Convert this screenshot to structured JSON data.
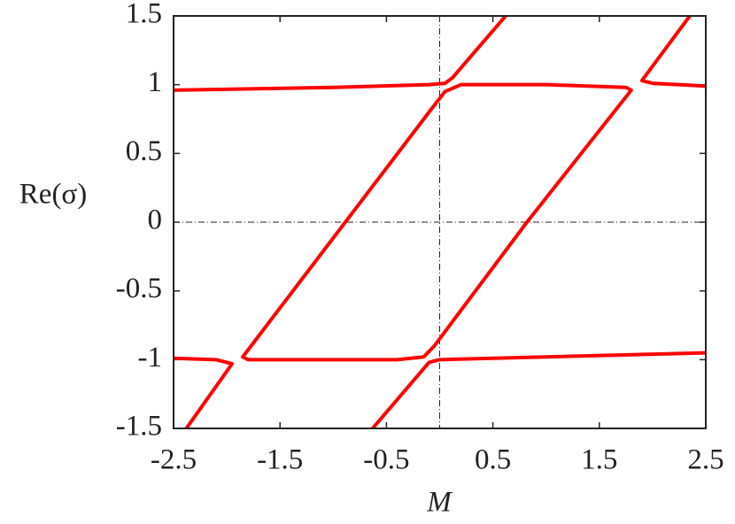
{
  "chart_data": {
    "type": "line",
    "x_label": "M",
    "y_label": "Re(σ)",
    "xlim": [
      -2.5,
      2.5
    ],
    "ylim": [
      -1.5,
      1.5
    ],
    "xticks": [
      -2.5,
      -1.5,
      -0.5,
      0.5,
      1.5,
      2.5
    ],
    "yticks": [
      -1.5,
      -1,
      -0.5,
      0,
      0.5,
      1,
      1.5
    ],
    "grid": false,
    "reference_lines": {
      "x": 0,
      "y": 0
    },
    "series": [
      {
        "color": "#ff0000",
        "x": [
          -2.5,
          -1,
          -0.1,
          0.05,
          0.12,
          0.62
        ],
        "values": [
          0.96,
          0.98,
          1.0,
          1.01,
          1.05,
          1.5
        ]
      },
      {
        "color": "#ff0000",
        "x": [
          -2.5,
          -2.1,
          -1.95,
          -2.38
        ],
        "values": [
          -0.99,
          -1.0,
          -1.03,
          -1.5
        ]
      },
      {
        "color": "#ff0000",
        "x": [
          -1.85,
          -0.1,
          0.05,
          0.2,
          1.0,
          1.75,
          1.8,
          0.82,
          -0.05,
          -0.15,
          -0.4,
          -1.8,
          -1.85
        ],
        "values": [
          -0.98,
          0.8,
          0.95,
          1.0,
          1.0,
          0.98,
          0.96,
          0,
          -0.9,
          -0.98,
          -1.0,
          -1.0,
          -0.98
        ]
      },
      {
        "color": "#ff0000",
        "x": [
          -0.63,
          -0.1,
          0.0,
          2.5
        ],
        "values": [
          -1.5,
          -1.02,
          -1.0,
          -0.95
        ]
      },
      {
        "color": "#ff0000",
        "x": [
          2.35,
          1.9,
          2.0,
          2.5
        ],
        "values": [
          1.5,
          1.03,
          1.01,
          0.99
        ]
      }
    ]
  }
}
